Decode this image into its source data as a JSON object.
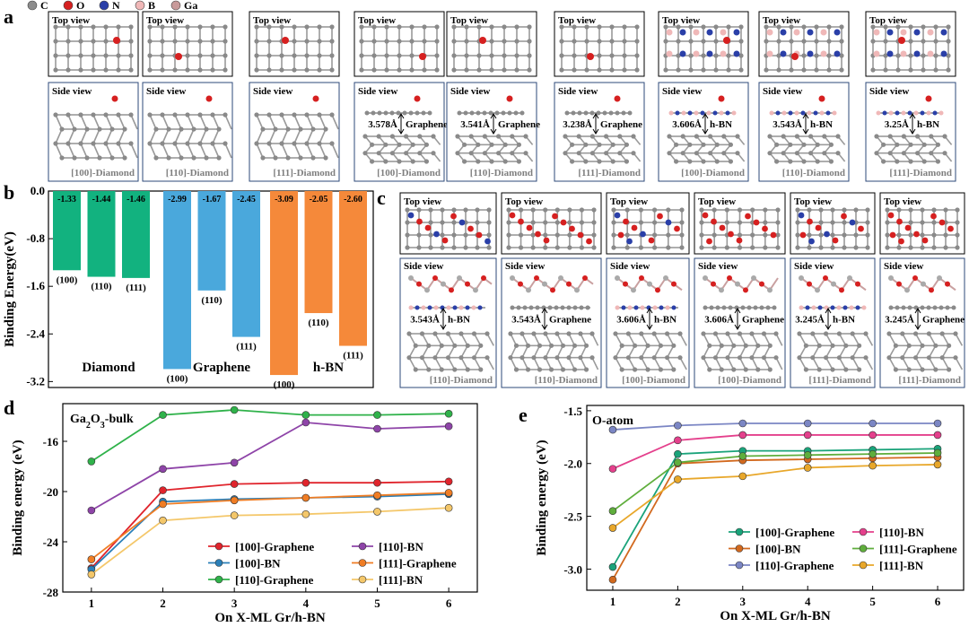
{
  "panel_labels": {
    "a": "a",
    "b": "b",
    "c": "c",
    "d": "d",
    "e": "e"
  },
  "atom_key": [
    {
      "label": "C",
      "color": "#8c8c8c"
    },
    {
      "label": "O",
      "color": "#d62020"
    },
    {
      "label": "N",
      "color": "#2a3fa8"
    },
    {
      "label": "B",
      "color": "#f0b8b8"
    },
    {
      "label": "Ga",
      "color": "#c89a9a"
    }
  ],
  "view_labels": {
    "top": "Top view",
    "side": "Side view"
  },
  "panel_a": [
    {
      "caption": "[100]-Diamond",
      "material": "",
      "distance": ""
    },
    {
      "caption": "[110]-Diamond",
      "material": "",
      "distance": ""
    },
    {
      "caption": "[111]-Diamond",
      "material": "",
      "distance": ""
    },
    {
      "caption": "[100]-Diamond",
      "material": "Graphene",
      "distance": "3.578Å"
    },
    {
      "caption": "[110]-Diamond",
      "material": "Graphene",
      "distance": "3.541Å"
    },
    {
      "caption": "[111]-Diamond",
      "material": "Graphene",
      "distance": "3.238Å"
    },
    {
      "caption": "[100]-Diamond",
      "material": "h-BN",
      "distance": "3.606Å"
    },
    {
      "caption": "[110]-Diamond",
      "material": "h-BN",
      "distance": "3.543Å"
    },
    {
      "caption": "[111]-Diamond",
      "material": "h-BN",
      "distance": "3.25Å"
    }
  ],
  "panel_c": [
    {
      "caption": "[110]-Diamond",
      "material": "h-BN",
      "distance": "3.543Å"
    },
    {
      "caption": "[110]-Diamond",
      "material": "Graphene",
      "distance": "3.543Å"
    },
    {
      "caption": "[100]-Diamond",
      "material": "h-BN",
      "distance": "3.606Å"
    },
    {
      "caption": "[100]-Diamond",
      "material": "Graphene",
      "distance": "3.606Å"
    },
    {
      "caption": "[111]-Diamond",
      "material": "h-BN",
      "distance": "3.245Å"
    },
    {
      "caption": "[111]-Diamond",
      "material": "Graphene",
      "distance": "3.245Å"
    }
  ],
  "chart_data": [
    {
      "id": "b",
      "type": "bar",
      "ylabel": "Binding Energy(eV)",
      "ylim": [
        -3.3,
        0.0
      ],
      "yticks": [
        0.0,
        -0.8,
        -1.6,
        -2.4,
        -3.2
      ],
      "ytick_labels": [
        "0.0",
        "-0.8",
        "-1.6",
        "-2.4",
        "-3.2"
      ],
      "groups": [
        {
          "name": "Diamond",
          "color": "#12b27f",
          "bars": [
            {
              "category": "(100)",
              "value": -1.33,
              "label": "-1.33"
            },
            {
              "category": "(110)",
              "value": -1.44,
              "label": "-1.44"
            },
            {
              "category": "(111)",
              "value": -1.46,
              "label": "-1.46"
            }
          ]
        },
        {
          "name": "Graphene",
          "color": "#4aa8dc",
          "bars": [
            {
              "category": "(100)",
              "value": -2.99,
              "label": "-2.99"
            },
            {
              "category": "(110)",
              "value": -1.67,
              "label": "-1.67"
            },
            {
              "category": "(111)",
              "value": -2.45,
              "label": "-2.45"
            }
          ]
        },
        {
          "name": "h-BN",
          "color": "#f5893a",
          "bars": [
            {
              "category": "(100)",
              "value": -3.09,
              "label": "-3.09"
            },
            {
              "category": "(110)",
              "value": -2.05,
              "label": "-2.05"
            },
            {
              "category": "(111)",
              "value": -2.6,
              "label": "-2.60"
            }
          ]
        }
      ]
    },
    {
      "id": "d",
      "type": "line",
      "annotation": "Ga2O3-bulk",
      "annotation_main": "Ga",
      "annotation_sub1": "2",
      "annotation_mid": "O",
      "annotation_sub2": "3",
      "annotation_tail": "-bulk",
      "xlabel": "On X-ML Gr/h-BN",
      "ylabel": "Binding energy (eV)",
      "x": [
        1,
        2,
        3,
        4,
        5,
        6
      ],
      "xticks": [
        "1",
        "2",
        "3",
        "4",
        "5",
        "6"
      ],
      "ylim": [
        -28,
        -13
      ],
      "yticks": [
        -16,
        -20,
        -24,
        -28
      ],
      "ytick_labels": [
        "-16",
        "-20",
        "-24",
        "-28"
      ],
      "legend_position": "bottom-right",
      "series": [
        {
          "name": "[100]-Graphene",
          "color": "#e0242c",
          "values": [
            -26.1,
            -19.9,
            -19.4,
            -19.3,
            -19.3,
            -19.2
          ]
        },
        {
          "name": "[100]-BN",
          "color": "#2a7fb8",
          "values": [
            -26.2,
            -20.8,
            -20.6,
            -20.5,
            -20.4,
            -20.2
          ]
        },
        {
          "name": "[110]-Graphene",
          "color": "#2fb24a",
          "values": [
            -17.6,
            -13.9,
            -13.5,
            -13.9,
            -13.9,
            -13.8
          ]
        },
        {
          "name": "[110]-BN",
          "color": "#8e44a8",
          "values": [
            -21.5,
            -18.2,
            -17.7,
            -14.5,
            -15.0,
            -14.8
          ]
        },
        {
          "name": "[111]-Graphene",
          "color": "#f07d24",
          "values": [
            -25.4,
            -21.0,
            -20.7,
            -20.5,
            -20.3,
            -20.1
          ]
        },
        {
          "name": "[111]-BN",
          "color": "#f4c76a",
          "values": [
            -26.6,
            -22.3,
            -21.9,
            -21.8,
            -21.6,
            -21.3
          ]
        }
      ]
    },
    {
      "id": "e",
      "type": "line",
      "annotation": "O-atom",
      "xlabel": "On X-ML Gr/h-BN",
      "ylabel": "Binding energy (eV)",
      "x": [
        1,
        2,
        3,
        4,
        5,
        6
      ],
      "xticks": [
        "1",
        "2",
        "3",
        "4",
        "5",
        "6"
      ],
      "ylim": [
        -3.2,
        -1.45
      ],
      "yticks": [
        -1.5,
        -2.0,
        -2.5,
        -3.0
      ],
      "ytick_labels": [
        "-1.5",
        "-2.0",
        "-2.5",
        "-3.0"
      ],
      "legend_position": "bottom-right",
      "series": [
        {
          "name": "[100]-Graphene",
          "color": "#1aa37a",
          "values": [
            -2.98,
            -1.91,
            -1.88,
            -1.88,
            -1.87,
            -1.86
          ]
        },
        {
          "name": "[100]-BN",
          "color": "#d2691e",
          "values": [
            -3.1,
            -2.0,
            -1.97,
            -1.96,
            -1.95,
            -1.94
          ]
        },
        {
          "name": "[110]-Graphene",
          "color": "#7b86c4",
          "values": [
            -1.68,
            -1.64,
            -1.62,
            -1.62,
            -1.62,
            -1.62
          ]
        },
        {
          "name": "[110]-BN",
          "color": "#e4408c",
          "values": [
            -2.05,
            -1.78,
            -1.73,
            -1.73,
            -1.73,
            -1.73
          ]
        },
        {
          "name": "[111]-Graphene",
          "color": "#5fae3c",
          "values": [
            -2.45,
            -1.99,
            -1.93,
            -1.92,
            -1.91,
            -1.9
          ]
        },
        {
          "name": "[111]-BN",
          "color": "#e8a72a",
          "values": [
            -2.61,
            -2.15,
            -2.12,
            -2.04,
            -2.02,
            -2.01
          ]
        }
      ]
    }
  ]
}
